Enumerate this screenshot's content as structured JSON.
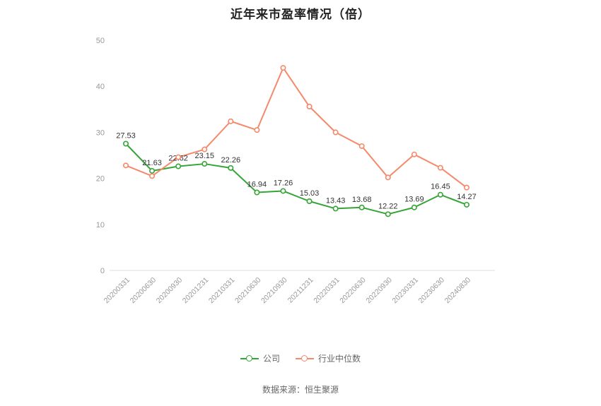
{
  "title": "近年来市盈率情况（倍）",
  "footer": {
    "source": "数据来源：恒生聚源"
  },
  "chart_data": {
    "type": "line",
    "title": "近年来市盈率情况（倍）",
    "xlabel": "",
    "ylabel": "",
    "ylim": [
      0,
      50
    ],
    "yticks": [
      0,
      10,
      20,
      30,
      40,
      50
    ],
    "grid": false,
    "legend_position": "bottom",
    "categories": [
      "20200331",
      "20200630",
      "20200930",
      "20201231",
      "20210331",
      "20210630",
      "20210930",
      "20211231",
      "20220331",
      "20220630",
      "20220930",
      "20230331",
      "20230630",
      "20240830"
    ],
    "series": [
      {
        "name": "公司",
        "color": "#35a535",
        "labels_visible": true,
        "values": [
          27.53,
          21.63,
          22.62,
          23.15,
          22.26,
          16.94,
          17.26,
          15.03,
          13.43,
          13.68,
          12.22,
          13.69,
          16.45,
          14.27
        ]
      },
      {
        "name": "行业中位数",
        "color": "#f5896b",
        "labels_visible": false,
        "values": [
          22.8,
          20.5,
          24.6,
          26.3,
          32.4,
          30.5,
          44.0,
          35.6,
          30.0,
          27.0,
          20.2,
          25.2,
          22.3,
          18.0
        ]
      }
    ]
  }
}
